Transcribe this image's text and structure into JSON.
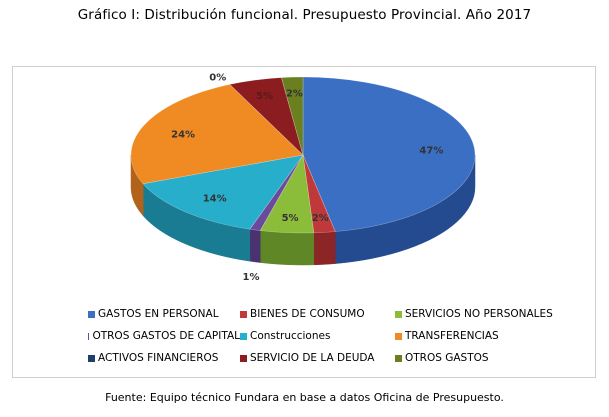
{
  "title": "Gráfico I: Distribución funcional. Presupuesto Provincial. Año 2017",
  "source": "Fuente: Equipo técnico Fundara en base a datos Oficina de Presupuesto.",
  "chart_data": {
    "type": "pie",
    "title": "Gráfico I: Distribución funcional. Presupuesto Provincial. Año 2017",
    "categories": [
      "GASTOS EN PERSONAL",
      "BIENES DE CONSUMO",
      "SERVICIOS NO PERSONALES",
      "OTROS GASTOS DE CAPITAL",
      "Construcciones",
      "TRANSFERENCIAS",
      "ACTIVOS FINANCIEROS",
      "SERVICIO DE LA DEUDA",
      "OTROS GASTOS"
    ],
    "values": [
      47,
      2,
      5,
      1,
      14,
      24,
      0,
      5,
      2
    ],
    "labels": [
      "47%",
      "2%",
      "5%",
      "1%",
      "14%",
      "24%",
      "0%",
      "5%",
      "2%"
    ],
    "colors": [
      "#3a6fc4",
      "#c0393a",
      "#8cbd3a",
      "#6a4a9a",
      "#27aecb",
      "#f08a22",
      "#1f3f6b",
      "#8b1c1f",
      "#6b7f1f"
    ],
    "side_colors": [
      "#244b8f",
      "#8c2526",
      "#5f8726",
      "#4a3270",
      "#1a7c92",
      "#b3621a",
      "#142a49",
      "#5c1113",
      "#48561a"
    ],
    "style": "3d",
    "legend_position": "bottom"
  }
}
